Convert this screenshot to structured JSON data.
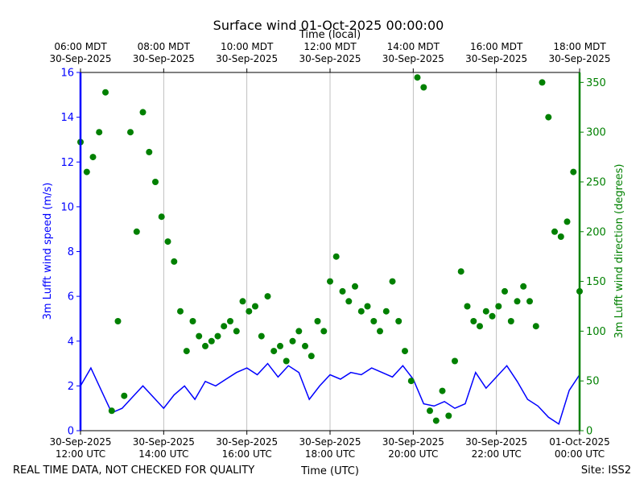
{
  "colors": {
    "speed": "#0000ff",
    "direction": "#008000",
    "grid": "#b0b0b0",
    "text": "#000000"
  },
  "footer": {
    "left_note": "REAL TIME DATA, NOT CHECKED FOR QUALITY",
    "site": "Site: ISS2"
  },
  "chart_data": {
    "type": "line",
    "title": "Surface wind 01-Oct-2025 00:00:00",
    "xlabel": "Time (UTC)",
    "x2label": "Time (local)",
    "ylabel": "3m Lufft wind speed (m/s)",
    "y2label": "3m Lufft wind direction (degrees)",
    "xlim_hours": [
      12,
      24
    ],
    "ylim": [
      0,
      16
    ],
    "y2lim": [
      0,
      360
    ],
    "grid": "vertical",
    "yticks": [
      0,
      2,
      4,
      6,
      8,
      10,
      12,
      14,
      16
    ],
    "y2ticks": [
      0,
      50,
      100,
      150,
      200,
      250,
      300,
      350
    ],
    "xticks": [
      {
        "hour": 12,
        "line1": "30-Sep-2025",
        "line2": "12:00 UTC"
      },
      {
        "hour": 14,
        "line1": "30-Sep-2025",
        "line2": "14:00 UTC"
      },
      {
        "hour": 16,
        "line1": "30-Sep-2025",
        "line2": "16:00 UTC"
      },
      {
        "hour": 18,
        "line1": "30-Sep-2025",
        "line2": "18:00 UTC"
      },
      {
        "hour": 20,
        "line1": "30-Sep-2025",
        "line2": "20:00 UTC"
      },
      {
        "hour": 22,
        "line1": "30-Sep-2025",
        "line2": "22:00 UTC"
      },
      {
        "hour": 24,
        "line1": "01-Oct-2025",
        "line2": "00:00 UTC"
      }
    ],
    "x2ticks": [
      {
        "hour": 12,
        "line1": "06:00 MDT",
        "line2": "30-Sep-2025"
      },
      {
        "hour": 14,
        "line1": "08:00 MDT",
        "line2": "30-Sep-2025"
      },
      {
        "hour": 16,
        "line1": "10:00 MDT",
        "line2": "30-Sep-2025"
      },
      {
        "hour": 18,
        "line1": "12:00 MDT",
        "line2": "30-Sep-2025"
      },
      {
        "hour": 20,
        "line1": "14:00 MDT",
        "line2": "30-Sep-2025"
      },
      {
        "hour": 22,
        "line1": "16:00 MDT",
        "line2": "30-Sep-2025"
      },
      {
        "hour": 24,
        "line1": "18:00 MDT",
        "line2": "30-Sep-2025"
      }
    ],
    "series": [
      {
        "name": "3m Lufft wind speed (m/s)",
        "kind": "line",
        "axis": "left",
        "x_hours": [
          12.0,
          12.25,
          12.5,
          12.75,
          13.0,
          13.25,
          13.5,
          13.75,
          14.0,
          14.25,
          14.5,
          14.75,
          15.0,
          15.25,
          15.5,
          15.75,
          16.0,
          16.25,
          16.5,
          16.75,
          17.0,
          17.25,
          17.5,
          17.75,
          18.0,
          18.25,
          18.5,
          18.75,
          19.0,
          19.25,
          19.5,
          19.75,
          20.0,
          20.25,
          20.5,
          20.75,
          21.0,
          21.25,
          21.5,
          21.75,
          22.0,
          22.25,
          22.5,
          22.75,
          23.0,
          23.25,
          23.5,
          23.75,
          24.0
        ],
        "values": [
          2.0,
          2.8,
          1.8,
          0.8,
          1.0,
          1.5,
          2.0,
          1.5,
          1.0,
          1.6,
          2.0,
          1.4,
          2.2,
          2.0,
          2.3,
          2.6,
          2.8,
          2.5,
          3.0,
          2.4,
          2.9,
          2.6,
          1.4,
          2.0,
          2.5,
          2.3,
          2.6,
          2.5,
          2.8,
          2.6,
          2.4,
          2.9,
          2.3,
          1.2,
          1.1,
          1.3,
          1.0,
          1.2,
          2.6,
          1.9,
          2.4,
          2.9,
          2.2,
          1.4,
          1.1,
          0.6,
          0.3,
          1.8,
          2.5
        ]
      },
      {
        "name": "3m Lufft wind direction (degrees)",
        "kind": "scatter",
        "axis": "right",
        "x_hours": [
          12.0,
          12.15,
          12.3,
          12.45,
          12.6,
          12.75,
          12.9,
          13.05,
          13.2,
          13.35,
          13.5,
          13.65,
          13.8,
          13.95,
          14.1,
          14.25,
          14.4,
          14.55,
          14.7,
          14.85,
          15.0,
          15.15,
          15.3,
          15.45,
          15.6,
          15.75,
          15.9,
          16.05,
          16.2,
          16.35,
          16.5,
          16.65,
          16.8,
          16.95,
          17.1,
          17.25,
          17.4,
          17.55,
          17.7,
          17.85,
          18.0,
          18.15,
          18.3,
          18.45,
          18.6,
          18.75,
          18.9,
          19.05,
          19.2,
          19.35,
          19.5,
          19.65,
          19.8,
          19.95,
          20.1,
          20.25,
          20.4,
          20.55,
          20.7,
          20.85,
          21.0,
          21.15,
          21.3,
          21.45,
          21.6,
          21.75,
          21.9,
          22.05,
          22.2,
          22.35,
          22.5,
          22.65,
          22.8,
          22.95,
          23.1,
          23.25,
          23.4,
          23.55,
          23.7,
          23.85,
          24.0
        ],
        "values": [
          290,
          260,
          275,
          300,
          340,
          20,
          110,
          35,
          300,
          200,
          320,
          280,
          250,
          215,
          190,
          170,
          120,
          80,
          110,
          95,
          85,
          90,
          95,
          105,
          110,
          100,
          130,
          120,
          125,
          95,
          135,
          80,
          85,
          70,
          90,
          100,
          85,
          75,
          110,
          100,
          150,
          175,
          140,
          130,
          145,
          120,
          125,
          110,
          100,
          120,
          150,
          110,
          80,
          50,
          355,
          345,
          20,
          10,
          40,
          15,
          70,
          160,
          125,
          110,
          105,
          120,
          115,
          125,
          140,
          110,
          130,
          145,
          130,
          105,
          350,
          315,
          200,
          195,
          210,
          260,
          140
        ]
      }
    ]
  }
}
